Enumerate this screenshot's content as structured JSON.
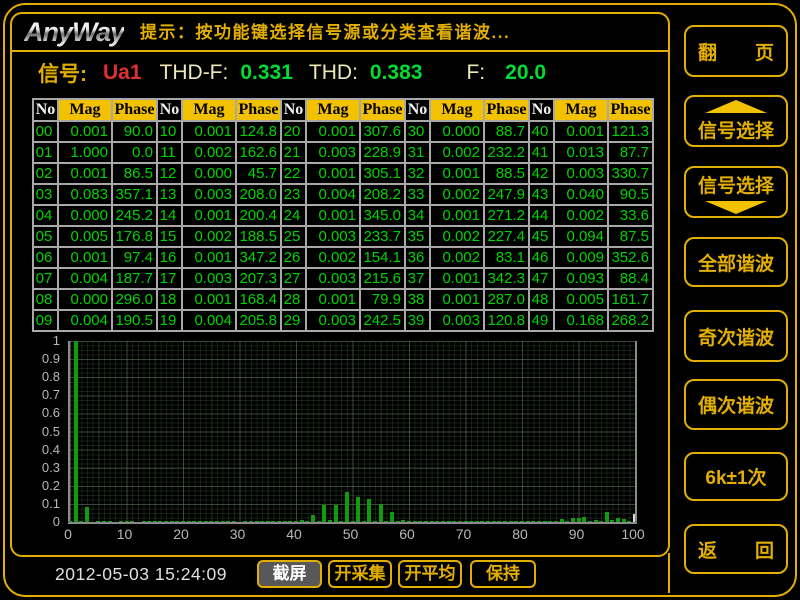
{
  "top_bar": {
    "logo_text": "AnyWay",
    "hint": "提示：按功能键选择信号源或分类查看谐波..."
  },
  "signal_bar": {
    "signal_label": "信号:",
    "signal_value": "Ua1",
    "thdf_label": "THD-F:",
    "thdf_value": "0.331",
    "thd_label": "THD:",
    "thd_value": "0.383",
    "freq_label": "F:",
    "freq_value": "20.0"
  },
  "table": {
    "groups": 5,
    "group_headers": [
      "No",
      "Mag",
      "Phase"
    ],
    "rows": [
      [
        "00",
        "0.001",
        "90.0",
        "10",
        "0.001",
        "124.8",
        "20",
        "0.001",
        "307.6",
        "30",
        "0.000",
        "88.7",
        "40",
        "0.001",
        "121.3"
      ],
      [
        "01",
        "1.000",
        "0.0",
        "11",
        "0.002",
        "162.6",
        "21",
        "0.003",
        "228.9",
        "31",
        "0.002",
        "232.2",
        "41",
        "0.013",
        "87.7"
      ],
      [
        "02",
        "0.001",
        "86.5",
        "12",
        "0.000",
        "45.7",
        "22",
        "0.001",
        "305.1",
        "32",
        "0.001",
        "88.5",
        "42",
        "0.003",
        "330.7"
      ],
      [
        "03",
        "0.083",
        "357.1",
        "13",
        "0.003",
        "208.0",
        "23",
        "0.004",
        "208.2",
        "33",
        "0.002",
        "247.9",
        "43",
        "0.040",
        "90.5"
      ],
      [
        "04",
        "0.000",
        "245.2",
        "14",
        "0.001",
        "200.4",
        "24",
        "0.001",
        "345.0",
        "34",
        "0.001",
        "271.2",
        "44",
        "0.002",
        "33.6"
      ],
      [
        "05",
        "0.005",
        "176.8",
        "15",
        "0.002",
        "188.5",
        "25",
        "0.003",
        "233.7",
        "35",
        "0.002",
        "227.4",
        "45",
        "0.094",
        "87.5"
      ],
      [
        "06",
        "0.001",
        "97.4",
        "16",
        "0.001",
        "347.2",
        "26",
        "0.002",
        "154.1",
        "36",
        "0.002",
        "83.1",
        "46",
        "0.009",
        "352.6"
      ],
      [
        "07",
        "0.004",
        "187.7",
        "17",
        "0.003",
        "207.3",
        "27",
        "0.003",
        "215.6",
        "37",
        "0.001",
        "342.3",
        "47",
        "0.093",
        "88.4"
      ],
      [
        "08",
        "0.000",
        "296.0",
        "18",
        "0.001",
        "168.4",
        "28",
        "0.001",
        "79.9",
        "38",
        "0.001",
        "287.0",
        "48",
        "0.005",
        "161.7"
      ],
      [
        "09",
        "0.004",
        "190.5",
        "19",
        "0.004",
        "205.8",
        "29",
        "0.003",
        "242.5",
        "39",
        "0.003",
        "120.8",
        "49",
        "0.168",
        "268.2"
      ]
    ]
  },
  "chart_data": {
    "type": "bar",
    "title": "",
    "xlabel": "",
    "ylabel": "",
    "xlim": [
      0,
      100
    ],
    "ylim": [
      0,
      1
    ],
    "grid": true,
    "bar_color": "#0c9c0c",
    "x_ticks": [
      "0",
      "10",
      "20",
      "30",
      "40",
      "50",
      "60",
      "70",
      "80",
      "90",
      "100"
    ],
    "y_ticks": [
      "1",
      "0.9",
      "0.8",
      "0.7",
      "0.6",
      "0.5",
      "0.4",
      "0.3",
      "0.2",
      "0.1",
      "0"
    ],
    "x_description": "harmonic order 0-100",
    "values": [
      0.001,
      1.0,
      0.001,
      0.083,
      0.0,
      0.005,
      0.001,
      0.004,
      0.0,
      0.004,
      0.001,
      0.002,
      0.0,
      0.003,
      0.001,
      0.002,
      0.001,
      0.003,
      0.001,
      0.004,
      0.001,
      0.003,
      0.001,
      0.004,
      0.001,
      0.003,
      0.002,
      0.003,
      0.001,
      0.003,
      0.0,
      0.002,
      0.001,
      0.002,
      0.001,
      0.002,
      0.002,
      0.001,
      0.001,
      0.003,
      0.001,
      0.013,
      0.003,
      0.04,
      0.002,
      0.094,
      0.009,
      0.093,
      0.005,
      0.168,
      0.005,
      0.14,
      0.008,
      0.125,
      0.006,
      0.1,
      0.005,
      0.055,
      0.004,
      0.01,
      0.006,
      0.005,
      0.004,
      0.006,
      0.003,
      0.006,
      0.003,
      0.006,
      0.002,
      0.004,
      0.003,
      0.004,
      0.002,
      0.008,
      0.003,
      0.002,
      0.002,
      0.003,
      0.002,
      0.002,
      0.002,
      0.002,
      0.002,
      0.003,
      0.002,
      0.004,
      0.008,
      0.018,
      0.006,
      0.024,
      0.02,
      0.028,
      0.008,
      0.012,
      0.006,
      0.055,
      0.012,
      0.022,
      0.018,
      0.008,
      0.004
    ],
    "marker": {
      "x": 99.6,
      "height": 0.045,
      "color": "#d8d8d8"
    }
  },
  "sidebar": {
    "buttons": [
      {
        "id": "page-turn",
        "label": "翻　　页"
      },
      {
        "id": "signal-select-up",
        "label": "信号选择",
        "arrow": "up"
      },
      {
        "id": "signal-select-down",
        "label": "信号选择",
        "arrow": "down"
      },
      {
        "id": "all-harmonics",
        "label": "全部谐波"
      },
      {
        "id": "odd-harmonics",
        "label": "奇次谐波"
      },
      {
        "id": "even-harmonics",
        "label": "偶次谐波"
      },
      {
        "id": "6k1-harmonics",
        "label": "6k±1次"
      },
      {
        "id": "back",
        "label": "返　　回"
      }
    ]
  },
  "bottom_bar": {
    "timestamp": "2012-05-03 15:24:09",
    "buttons": [
      {
        "id": "screenshot",
        "label": "截屏",
        "active": true
      },
      {
        "id": "start-sampling",
        "label": "开采集",
        "active": false
      },
      {
        "id": "start-averaging",
        "label": "开平均",
        "active": false
      },
      {
        "id": "hold",
        "label": "保持",
        "active": false
      }
    ]
  },
  "colors": {
    "accent_gold": "#e2af00",
    "header_yellow": "#f2c100",
    "data_green": "#00d400",
    "bar_green": "#0c9c0c",
    "signal_red": "#e03030",
    "label_cream": "#eee8b8"
  }
}
